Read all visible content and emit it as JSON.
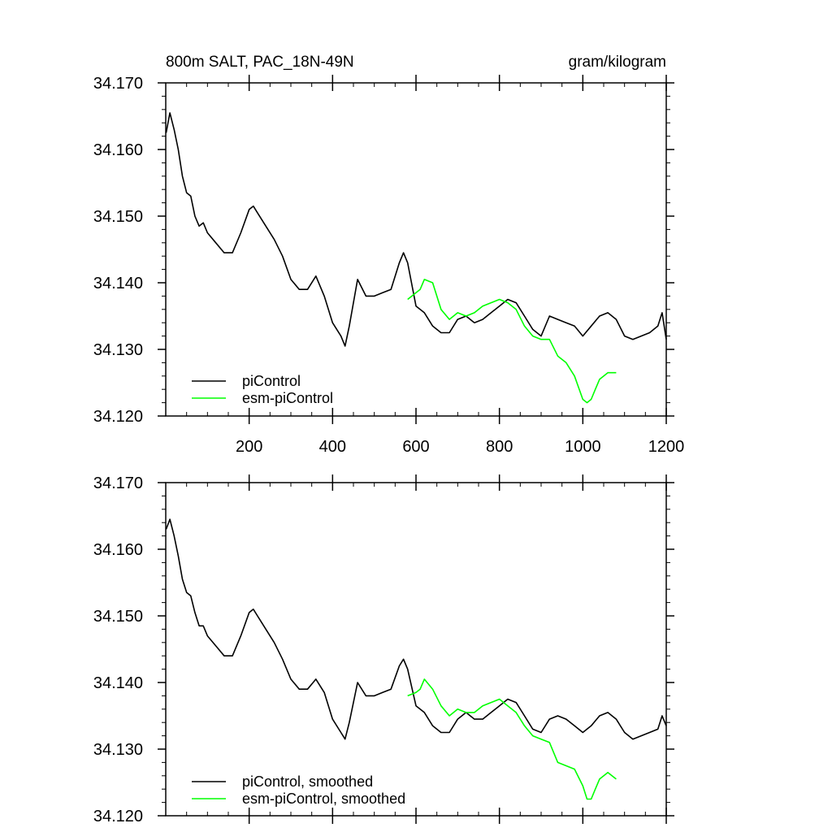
{
  "chart_data": [
    {
      "type": "line",
      "title": "800m SALT, PAC_18N-49N",
      "units": "gram/kilogram",
      "xlabel": "",
      "ylabel": "",
      "xlim": [
        0,
        1200
      ],
      "ylim": [
        34.12,
        34.17
      ],
      "x_ticks": [
        200,
        400,
        600,
        800,
        1000,
        1200
      ],
      "x_tick_labels": [
        "200",
        "400",
        "600",
        "800",
        "1000",
        "1200"
      ],
      "y_ticks": [
        34.12,
        34.13,
        34.14,
        34.15,
        34.16,
        34.17
      ],
      "y_tick_labels": [
        "34.120",
        "34.130",
        "34.140",
        "34.150",
        "34.160",
        "34.170"
      ],
      "grid": false,
      "legend_position": "bottom-left",
      "series": [
        {
          "name": "piControl",
          "color": "#000000",
          "x": [
            1,
            10,
            20,
            30,
            40,
            50,
            60,
            70,
            80,
            90,
            100,
            120,
            140,
            160,
            180,
            200,
            210,
            220,
            240,
            260,
            280,
            300,
            320,
            340,
            360,
            380,
            400,
            420,
            430,
            440,
            460,
            480,
            500,
            520,
            540,
            560,
            570,
            580,
            600,
            620,
            640,
            660,
            680,
            700,
            720,
            740,
            760,
            780,
            800,
            820,
            840,
            860,
            880,
            900,
            920,
            940,
            960,
            980,
            1000,
            1020,
            1040,
            1060,
            1080,
            1100,
            1120,
            1140,
            1160,
            1180,
            1190,
            1200
          ],
          "y": [
            34.1625,
            34.1655,
            34.163,
            34.16,
            34.156,
            34.1535,
            34.153,
            34.15,
            34.1485,
            34.149,
            34.1475,
            34.146,
            34.1445,
            34.1445,
            34.1475,
            34.151,
            34.1515,
            34.1505,
            34.1485,
            34.1465,
            34.144,
            34.1405,
            34.139,
            34.139,
            34.141,
            34.138,
            34.134,
            34.132,
            34.1305,
            34.1335,
            34.1405,
            34.138,
            34.138,
            34.1385,
            34.139,
            34.143,
            34.1445,
            34.143,
            34.1365,
            34.1355,
            34.1335,
            34.1325,
            34.1325,
            34.1345,
            34.135,
            34.134,
            34.1345,
            34.1355,
            34.1365,
            34.1375,
            34.137,
            34.135,
            34.133,
            34.132,
            34.135,
            34.1345,
            34.134,
            34.1335,
            34.132,
            34.1335,
            34.135,
            34.1355,
            34.1345,
            34.132,
            34.1315,
            34.132,
            34.1325,
            34.1335,
            34.1355,
            34.1315
          ]
        },
        {
          "name": "esm-piControl",
          "color": "#00ff00",
          "x": [
            580,
            600,
            610,
            620,
            640,
            660,
            680,
            700,
            720,
            740,
            760,
            780,
            800,
            820,
            840,
            860,
            880,
            900,
            920,
            940,
            960,
            980,
            1000,
            1010,
            1020,
            1030,
            1040,
            1060,
            1080
          ],
          "y": [
            34.1375,
            34.1385,
            34.139,
            34.1405,
            34.14,
            34.136,
            34.1345,
            34.1355,
            34.135,
            34.1355,
            34.1365,
            34.137,
            34.1375,
            34.137,
            34.136,
            34.1335,
            34.132,
            34.1315,
            34.1315,
            34.129,
            34.128,
            34.126,
            34.1225,
            34.122,
            34.1225,
            34.124,
            34.1255,
            34.1265,
            34.1265
          ]
        }
      ]
    },
    {
      "type": "line",
      "title": "",
      "xlabel": "",
      "ylabel": "",
      "xlim": [
        0,
        1200
      ],
      "ylim": [
        34.12,
        34.17
      ],
      "y_ticks": [
        34.12,
        34.13,
        34.14,
        34.15,
        34.16,
        34.17
      ],
      "y_tick_labels": [
        "34.120",
        "34.130",
        "34.140",
        "34.150",
        "34.160",
        "34.170"
      ],
      "grid": false,
      "legend_position": "bottom-left",
      "series": [
        {
          "name": "piControl, smoothed",
          "color": "#000000",
          "x": [
            1,
            10,
            20,
            30,
            40,
            50,
            60,
            70,
            80,
            90,
            100,
            120,
            140,
            160,
            180,
            200,
            210,
            220,
            240,
            260,
            280,
            300,
            320,
            340,
            360,
            380,
            400,
            420,
            430,
            440,
            460,
            480,
            500,
            520,
            540,
            560,
            570,
            580,
            600,
            620,
            640,
            660,
            680,
            700,
            720,
            740,
            760,
            780,
            800,
            820,
            840,
            860,
            880,
            900,
            920,
            940,
            960,
            980,
            1000,
            1020,
            1040,
            1060,
            1080,
            1100,
            1120,
            1140,
            1160,
            1180,
            1190,
            1200
          ],
          "y": [
            34.163,
            34.1645,
            34.162,
            34.159,
            34.1555,
            34.1535,
            34.153,
            34.1505,
            34.1485,
            34.1485,
            34.147,
            34.1455,
            34.144,
            34.144,
            34.147,
            34.1505,
            34.151,
            34.15,
            34.148,
            34.146,
            34.1435,
            34.1405,
            34.139,
            34.139,
            34.1405,
            34.1385,
            34.1345,
            34.1325,
            34.1315,
            34.134,
            34.14,
            34.138,
            34.138,
            34.1385,
            34.139,
            34.1425,
            34.1435,
            34.142,
            34.1365,
            34.1355,
            34.1335,
            34.1325,
            34.1325,
            34.1345,
            34.1355,
            34.1345,
            34.1345,
            34.1355,
            34.1365,
            34.1375,
            34.137,
            34.135,
            34.133,
            34.1325,
            34.1345,
            34.135,
            34.1345,
            34.1335,
            34.1325,
            34.1335,
            34.135,
            34.1355,
            34.1345,
            34.1325,
            34.1315,
            34.132,
            34.1325,
            34.133,
            34.135,
            34.1335
          ]
        },
        {
          "name": "esm-piControl, smoothed",
          "color": "#00ff00",
          "x": [
            580,
            600,
            610,
            620,
            640,
            660,
            680,
            700,
            720,
            740,
            760,
            780,
            800,
            820,
            840,
            860,
            880,
            900,
            920,
            940,
            960,
            980,
            1000,
            1010,
            1020,
            1030,
            1040,
            1060,
            1080
          ],
          "y": [
            34.138,
            34.1385,
            34.139,
            34.1405,
            34.139,
            34.1365,
            34.135,
            34.136,
            34.1355,
            34.1355,
            34.1365,
            34.137,
            34.1375,
            34.1365,
            34.1355,
            34.1335,
            34.132,
            34.1315,
            34.131,
            34.128,
            34.1275,
            34.127,
            34.1245,
            34.1225,
            34.1225,
            34.124,
            34.1255,
            34.1265,
            34.1255
          ]
        }
      ]
    }
  ]
}
